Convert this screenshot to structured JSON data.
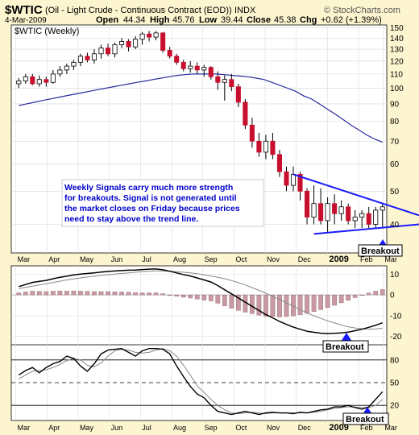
{
  "header": {
    "symbol": "$WTIC",
    "name": "(Oil - Light Crude - Continuous Contract (EOD))",
    "exchange": "INDX",
    "date": "4-Mar-2009",
    "open_label": "Open",
    "open": "44.34",
    "high_label": "High",
    "high": "45.76",
    "low_label": "Low",
    "low": "39.44",
    "close_label": "Close",
    "close": "45.38",
    "chg_label": "Chg",
    "chg": "+0.62 (+1.39%)",
    "watermark": "© StockCharts.com",
    "inner_label": "$WTIC (Weekly)"
  },
  "annotation": {
    "lines": [
      "Weekly Signals carry much more strength",
      "for breakouts. Signal is not generated until",
      "the market closes on Friday because prices",
      "need to stay above the trend line."
    ]
  },
  "breakout_labels": [
    "Breakout",
    "Breakout",
    "Breakout"
  ],
  "colors": {
    "background": "#fdf5cf",
    "panel": "#ffffff",
    "up_candle": "#ffffff",
    "down_candle": "#c8102e",
    "moving_average": "#2a2aa0",
    "trend_lines": "#1a1aff",
    "macd_line": "#000000",
    "signal_line": "#888888",
    "histogram": "#c99aa3",
    "annotation_text": "#0000cc"
  },
  "chart_data": [
    {
      "type": "candlestick",
      "title": "$WTIC (Weekly)",
      "x_tick_labels": [
        "Mar",
        "Apr",
        "May",
        "Jun",
        "Jul",
        "Aug",
        "Sep",
        "Oct",
        "Nov",
        "Dec",
        "2009",
        "Feb",
        "Mar"
      ],
      "y_tick_labels": [
        150,
        140,
        130,
        120,
        110,
        100,
        90,
        80,
        70,
        60,
        50,
        40
      ],
      "ylim": [
        33,
        153
      ],
      "y_scale": "log",
      "grid": true,
      "candles": [
        {
          "o": 103,
          "h": 107,
          "l": 100,
          "c": 105
        },
        {
          "o": 105,
          "h": 110,
          "l": 103,
          "c": 108
        },
        {
          "o": 108,
          "h": 110,
          "l": 102,
          "c": 103
        },
        {
          "o": 103,
          "h": 109,
          "l": 101,
          "c": 106
        },
        {
          "o": 106,
          "h": 108,
          "l": 101,
          "c": 104
        },
        {
          "o": 104,
          "h": 113,
          "l": 103,
          "c": 110
        },
        {
          "o": 110,
          "h": 116,
          "l": 108,
          "c": 113
        },
        {
          "o": 113,
          "h": 118,
          "l": 110,
          "c": 116
        },
        {
          "o": 116,
          "h": 121,
          "l": 113,
          "c": 119
        },
        {
          "o": 119,
          "h": 126,
          "l": 116,
          "c": 124
        },
        {
          "o": 124,
          "h": 127,
          "l": 119,
          "c": 121
        },
        {
          "o": 121,
          "h": 130,
          "l": 118,
          "c": 126
        },
        {
          "o": 126,
          "h": 134,
          "l": 122,
          "c": 131
        },
        {
          "o": 131,
          "h": 135,
          "l": 124,
          "c": 126
        },
        {
          "o": 126,
          "h": 136,
          "l": 123,
          "c": 134
        },
        {
          "o": 134,
          "h": 140,
          "l": 131,
          "c": 137
        },
        {
          "o": 137,
          "h": 139,
          "l": 128,
          "c": 132
        },
        {
          "o": 132,
          "h": 142,
          "l": 130,
          "c": 139
        },
        {
          "o": 139,
          "h": 146,
          "l": 134,
          "c": 144
        },
        {
          "o": 144,
          "h": 147,
          "l": 137,
          "c": 141
        },
        {
          "o": 141,
          "h": 147,
          "l": 138,
          "c": 145
        },
        {
          "o": 145,
          "h": 146,
          "l": 127,
          "c": 129
        },
        {
          "o": 129,
          "h": 132,
          "l": 122,
          "c": 124
        },
        {
          "o": 124,
          "h": 126,
          "l": 117,
          "c": 119
        },
        {
          "o": 119,
          "h": 121,
          "l": 112,
          "c": 114
        },
        {
          "o": 114,
          "h": 120,
          "l": 111,
          "c": 116
        },
        {
          "o": 116,
          "h": 119,
          "l": 110,
          "c": 113
        },
        {
          "o": 113,
          "h": 117,
          "l": 108,
          "c": 115
        },
        {
          "o": 115,
          "h": 116,
          "l": 106,
          "c": 108
        },
        {
          "o": 108,
          "h": 112,
          "l": 99,
          "c": 104
        },
        {
          "o": 104,
          "h": 109,
          "l": 92,
          "c": 106
        },
        {
          "o": 106,
          "h": 110,
          "l": 98,
          "c": 101
        },
        {
          "o": 101,
          "h": 103,
          "l": 88,
          "c": 91
        },
        {
          "o": 91,
          "h": 93,
          "l": 76,
          "c": 78
        },
        {
          "o": 78,
          "h": 82,
          "l": 67,
          "c": 70
        },
        {
          "o": 70,
          "h": 74,
          "l": 63,
          "c": 65
        },
        {
          "o": 65,
          "h": 73,
          "l": 62,
          "c": 70
        },
        {
          "o": 70,
          "h": 74,
          "l": 62,
          "c": 64
        },
        {
          "o": 64,
          "h": 66,
          "l": 55,
          "c": 57
        },
        {
          "o": 57,
          "h": 59,
          "l": 50,
          "c": 52
        },
        {
          "o": 52,
          "h": 59,
          "l": 50,
          "c": 56
        },
        {
          "o": 56,
          "h": 57,
          "l": 47,
          "c": 50
        },
        {
          "o": 50,
          "h": 51,
          "l": 40,
          "c": 42
        },
        {
          "o": 42,
          "h": 52,
          "l": 40,
          "c": 46
        },
        {
          "o": 46,
          "h": 51,
          "l": 40,
          "c": 41
        },
        {
          "o": 41,
          "h": 48,
          "l": 38,
          "c": 46
        },
        {
          "o": 46,
          "h": 49,
          "l": 40,
          "c": 43
        },
        {
          "o": 43,
          "h": 47,
          "l": 41,
          "c": 45
        },
        {
          "o": 45,
          "h": 46,
          "l": 40,
          "c": 41
        },
        {
          "o": 41,
          "h": 44,
          "l": 39,
          "c": 42
        },
        {
          "o": 42,
          "h": 44,
          "l": 39,
          "c": 43
        },
        {
          "o": 43,
          "h": 45,
          "l": 39,
          "c": 40
        },
        {
          "o": 40,
          "h": 45,
          "l": 39,
          "c": 44
        },
        {
          "o": 44,
          "h": 46,
          "l": 39,
          "c": 45
        }
      ],
      "moving_average": [
        89,
        90,
        91,
        92,
        93,
        94,
        95,
        96,
        97,
        98,
        99,
        100,
        101,
        102,
        103,
        104,
        105,
        106,
        107,
        108,
        109,
        109.5,
        110,
        110,
        110,
        110,
        109.5,
        109,
        108.5,
        108,
        107,
        106,
        104,
        102,
        100,
        98,
        95,
        93,
        90,
        87,
        84,
        81,
        78,
        75.5,
        73,
        71,
        69.5
      ]
    },
    {
      "type": "line",
      "name": "MACD",
      "y_tick_labels": [
        10,
        0,
        -10,
        -20
      ],
      "ylim": [
        -24,
        14
      ],
      "macd": [
        4,
        5,
        6,
        6.5,
        7,
        7.8,
        8.5,
        9,
        9.6,
        10,
        10.3,
        10.6,
        11,
        11.3,
        11.5,
        11.7,
        11.9,
        12,
        12.2,
        12.4,
        12.5,
        12.1,
        11.4,
        10.6,
        9.8,
        9.1,
        8.2,
        7.2,
        6.2,
        4.5,
        2.5,
        0.5,
        -1.5,
        -3.5,
        -5.5,
        -7.5,
        -9.5,
        -11,
        -12.8,
        -14.2,
        -15.5,
        -16.5,
        -17.5,
        -18,
        -18.4,
        -18.6,
        -18.5,
        -18.3,
        -17.9,
        -17.2,
        -16.5,
        -15.6,
        -14.6,
        -13.4
      ],
      "signal": [
        3,
        3.6,
        4.2,
        4.8,
        5.4,
        6,
        6.6,
        7.2,
        7.7,
        8.2,
        8.6,
        9,
        9.4,
        9.7,
        10,
        10.3,
        10.6,
        10.9,
        11.2,
        11.4,
        11.5,
        11.5,
        11.4,
        11.2,
        10.9,
        10.6,
        10.2,
        9.7,
        9.1,
        8.5,
        7.8,
        6.9,
        5.9,
        4.8,
        3.5,
        2.2,
        0.8,
        -0.7,
        -2.2,
        -3.8,
        -5.4,
        -7,
        -8.6,
        -10,
        -11.3,
        -12.5,
        -13.5,
        -14.5,
        -15.3,
        -15.9,
        -16.3,
        -16.5,
        -16.4,
        -16
      ]
    },
    {
      "type": "line",
      "name": "Stochastic",
      "y_tick_labels": [
        80,
        50,
        20
      ],
      "ylim": [
        0,
        100
      ],
      "reference_lines": [
        80,
        50,
        20
      ],
      "k": [
        60,
        66,
        70,
        63,
        70,
        75,
        78,
        85,
        82,
        72,
        65,
        75,
        88,
        93,
        94,
        95,
        90,
        85,
        92,
        95,
        95,
        94,
        88,
        72,
        58,
        45,
        35,
        30,
        20,
        12,
        10,
        8,
        10,
        12,
        10,
        8,
        10,
        11,
        10,
        10,
        9,
        11,
        10,
        12,
        14,
        15,
        18,
        18,
        20,
        17,
        15,
        18,
        28,
        38
      ],
      "d": [
        55,
        60,
        65,
        66,
        67,
        70,
        74,
        79,
        82,
        80,
        73,
        71,
        76,
        85,
        92,
        94,
        93,
        90,
        89,
        90,
        93,
        95,
        92,
        85,
        73,
        60,
        46,
        37,
        28,
        20,
        14,
        10,
        9,
        10,
        11,
        10,
        9,
        10,
        10,
        10,
        10,
        10,
        10,
        11,
        12,
        14,
        16,
        17,
        18,
        18,
        17,
        17,
        20,
        28
      ]
    }
  ]
}
